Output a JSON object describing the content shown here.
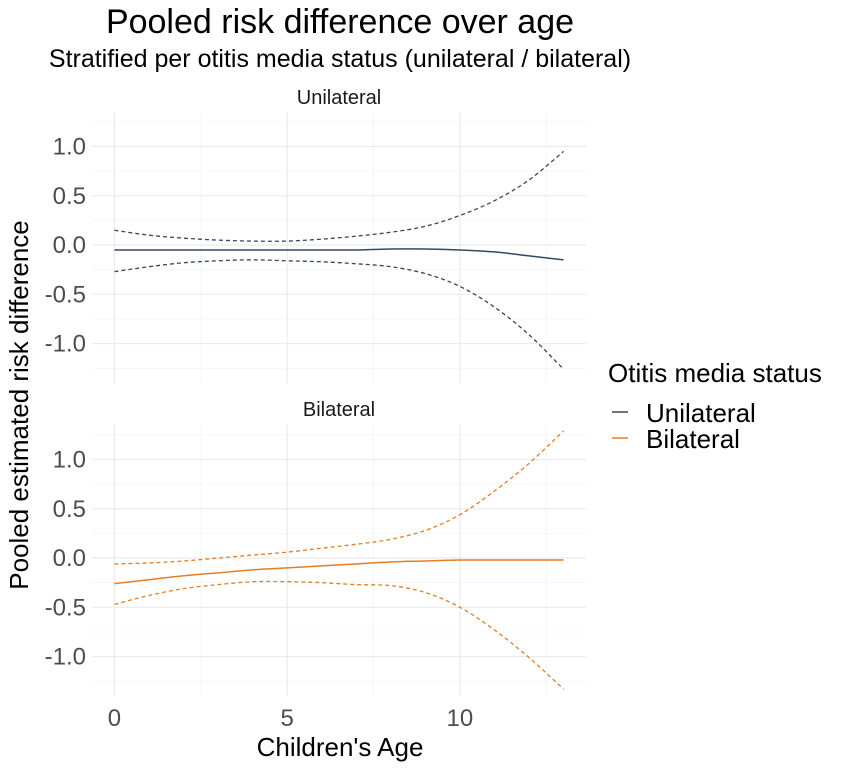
{
  "chart_data": {
    "type": "line",
    "title": "Pooled risk difference over age",
    "subtitle": "Stratified per otitis media status (unilateral / bilateral)",
    "xlabel": "Children's Age",
    "ylabel": "Pooled estimated risk difference",
    "xlim": [
      -0.65,
      13.65
    ],
    "ylim": [
      -1.4,
      1.35
    ],
    "x_ticks": [
      0,
      5,
      10
    ],
    "y_ticks": [
      1.0,
      0.5,
      0.0,
      -0.5,
      -1.0
    ],
    "x_tick_labels": [
      "0",
      "5",
      "10"
    ],
    "y_tick_labels": [
      "1.0",
      "0.5",
      "0.0",
      "-0.5",
      "-1.0"
    ],
    "grid": true,
    "legend": {
      "title": "Otitis media status",
      "placement": "right",
      "entries": [
        {
          "label": "Unilateral",
          "color": "#34495e"
        },
        {
          "label": "Bilateral",
          "color": "#e67e22"
        }
      ]
    },
    "facets": [
      {
        "strip_label": "Unilateral",
        "color": "#34495e",
        "x": [
          0,
          1,
          2,
          3,
          4,
          5,
          6,
          7,
          8,
          9,
          10,
          11,
          12,
          13
        ],
        "estimate": [
          -0.05,
          -0.05,
          -0.05,
          -0.05,
          -0.05,
          -0.05,
          -0.05,
          -0.05,
          -0.04,
          -0.04,
          -0.05,
          -0.07,
          -0.11,
          -0.15
        ],
        "upper": [
          0.15,
          0.1,
          0.07,
          0.05,
          0.04,
          0.04,
          0.06,
          0.09,
          0.13,
          0.19,
          0.3,
          0.45,
          0.66,
          0.95
        ],
        "lower": [
          -0.27,
          -0.22,
          -0.18,
          -0.16,
          -0.15,
          -0.16,
          -0.17,
          -0.19,
          -0.22,
          -0.29,
          -0.42,
          -0.63,
          -0.91,
          -1.26
        ]
      },
      {
        "strip_label": "Bilateral",
        "color": "#e67e22",
        "x": [
          0,
          1,
          2,
          3,
          4,
          5,
          6,
          7,
          8,
          9,
          10,
          11,
          12,
          13
        ],
        "estimate": [
          -0.26,
          -0.22,
          -0.18,
          -0.15,
          -0.12,
          -0.1,
          -0.08,
          -0.06,
          -0.04,
          -0.03,
          -0.02,
          -0.02,
          -0.02,
          -0.02
        ],
        "upper": [
          -0.06,
          -0.05,
          -0.03,
          0.0,
          0.03,
          0.06,
          0.1,
          0.14,
          0.19,
          0.28,
          0.44,
          0.68,
          0.96,
          1.29
        ],
        "lower": [
          -0.47,
          -0.38,
          -0.31,
          -0.27,
          -0.24,
          -0.24,
          -0.25,
          -0.27,
          -0.28,
          -0.35,
          -0.5,
          -0.73,
          -1.01,
          -1.33
        ]
      }
    ]
  }
}
